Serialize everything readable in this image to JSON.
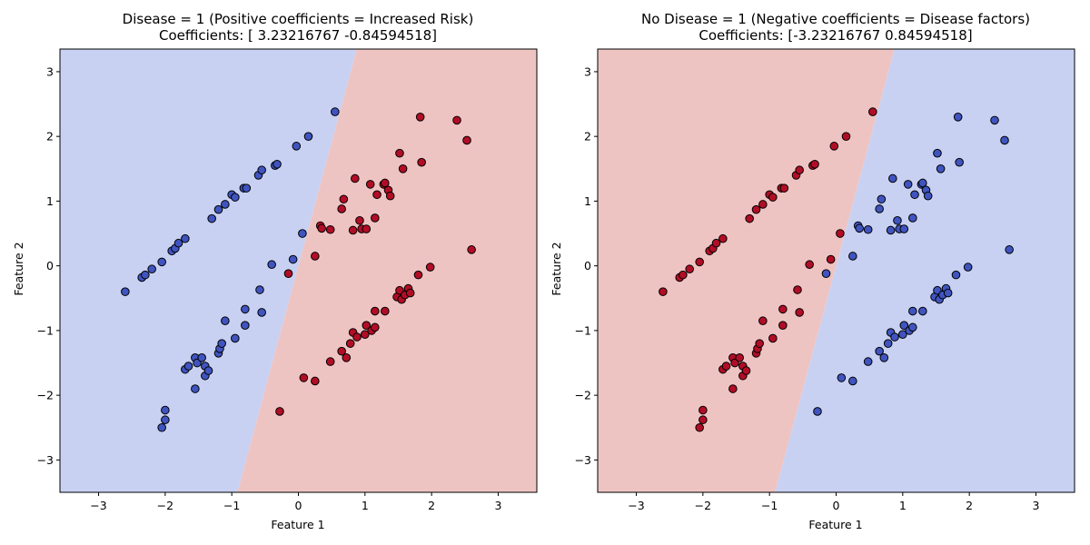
{
  "colors": {
    "region_low": "#c8d1f2",
    "region_high": "#eec4c3",
    "point_blue": "#4054c0",
    "point_red": "#b20d26",
    "point_edge": "#000000"
  },
  "chart_data": [
    {
      "type": "scatter",
      "title": "Disease = 1 (Positive coefficients = Increased Risk)",
      "subtitle": "Coefficients: [ 3.23216767 -0.84594518]",
      "xlabel": "Feature 1",
      "ylabel": "Feature 2",
      "xlim": [
        -3.58,
        3.58
      ],
      "ylim": [
        -3.5,
        3.35
      ],
      "xticks": [
        "−3",
        "−2",
        "−1",
        "0",
        "1",
        "2",
        "3"
      ],
      "yticks": [
        "−3",
        "−2",
        "−1",
        "0",
        "1",
        "2",
        "3"
      ],
      "xtick_values": [
        -3,
        -2,
        -1,
        0,
        1,
        2,
        3
      ],
      "ytick_values": [
        -3,
        -2,
        -1,
        0,
        1,
        2,
        3
      ],
      "decision_boundary": {
        "coef": [
          3.23216767,
          -0.84594518
        ],
        "positive_side_color": "red"
      },
      "grid": false
    },
    {
      "type": "scatter",
      "title": "No Disease = 1 (Negative coefficients = Disease factors)",
      "subtitle": "Coefficients: [-3.23216767  0.84594518]",
      "xlabel": "Feature 1",
      "ylabel": "Feature 2",
      "xlim": [
        -3.58,
        3.58
      ],
      "ylim": [
        -3.5,
        3.35
      ],
      "xticks": [
        "−3",
        "−2",
        "−1",
        "0",
        "1",
        "2",
        "3"
      ],
      "yticks": [
        "−3",
        "−2",
        "−1",
        "0",
        "1",
        "2",
        "3"
      ],
      "xtick_values": [
        -3,
        -2,
        -1,
        0,
        1,
        2,
        3
      ],
      "ytick_values": [
        -3,
        -2,
        -1,
        0,
        1,
        2,
        3
      ],
      "decision_boundary": {
        "coef": [
          -3.23216767,
          0.84594518
        ],
        "positive_side_color": "red"
      },
      "grid": false
    }
  ],
  "points": {
    "class0": [
      [
        -2.6,
        -0.4
      ],
      [
        -2.35,
        -0.18
      ],
      [
        -2.3,
        -0.14
      ],
      [
        -2.2,
        -0.05
      ],
      [
        -2.05,
        0.06
      ],
      [
        -1.9,
        0.23
      ],
      [
        -1.85,
        0.27
      ],
      [
        -1.8,
        0.35
      ],
      [
        -1.7,
        0.42
      ],
      [
        -1.3,
        0.73
      ],
      [
        -1.2,
        0.87
      ],
      [
        -1.1,
        0.95
      ],
      [
        -1.0,
        1.1
      ],
      [
        -0.95,
        1.06
      ],
      [
        -0.82,
        1.2
      ],
      [
        -0.78,
        1.2
      ],
      [
        -0.6,
        1.4
      ],
      [
        -0.55,
        1.48
      ],
      [
        -0.35,
        1.55
      ],
      [
        -0.32,
        1.57
      ],
      [
        -0.03,
        1.85
      ],
      [
        0.15,
        2.0
      ],
      [
        0.55,
        2.38
      ],
      [
        -2.05,
        -2.5
      ],
      [
        -2.0,
        -2.38
      ],
      [
        -2.0,
        -2.23
      ],
      [
        -1.7,
        -1.6
      ],
      [
        -1.65,
        -1.55
      ],
      [
        -1.55,
        -1.42
      ],
      [
        -1.52,
        -1.5
      ],
      [
        -1.45,
        -1.42
      ],
      [
        -1.4,
        -1.55
      ],
      [
        -1.4,
        -1.7
      ],
      [
        -1.35,
        -1.62
      ],
      [
        -1.55,
        -1.9
      ],
      [
        -1.2,
        -1.35
      ],
      [
        -1.18,
        -1.28
      ],
      [
        -1.15,
        -1.2
      ],
      [
        -1.1,
        -0.85
      ],
      [
        -0.95,
        -1.12
      ],
      [
        -0.8,
        -0.92
      ],
      [
        -0.8,
        -0.67
      ],
      [
        -0.58,
        -0.37
      ],
      [
        -0.55,
        -0.72
      ],
      [
        -0.4,
        0.02
      ],
      [
        -0.08,
        0.1
      ],
      [
        0.06,
        0.5
      ]
    ],
    "class1": [
      [
        -0.15,
        -0.12
      ],
      [
        0.25,
        0.15
      ],
      [
        0.33,
        0.62
      ],
      [
        0.35,
        0.58
      ],
      [
        0.48,
        0.56
      ],
      [
        0.65,
        0.88
      ],
      [
        0.68,
        1.03
      ],
      [
        0.82,
        0.55
      ],
      [
        0.85,
        1.35
      ],
      [
        0.92,
        0.7
      ],
      [
        0.95,
        0.57
      ],
      [
        1.02,
        0.57
      ],
      [
        1.08,
        1.26
      ],
      [
        1.15,
        0.74
      ],
      [
        1.18,
        1.1
      ],
      [
        1.28,
        1.26
      ],
      [
        1.3,
        1.28
      ],
      [
        1.35,
        1.17
      ],
      [
        1.38,
        1.08
      ],
      [
        1.52,
        1.74
      ],
      [
        1.57,
        1.5
      ],
      [
        1.83,
        2.3
      ],
      [
        1.85,
        1.6
      ],
      [
        2.38,
        2.25
      ],
      [
        2.53,
        1.94
      ],
      [
        2.6,
        0.25
      ],
      [
        -0.28,
        -2.25
      ],
      [
        0.08,
        -1.73
      ],
      [
        0.25,
        -1.78
      ],
      [
        0.48,
        -1.48
      ],
      [
        0.65,
        -1.32
      ],
      [
        0.72,
        -1.42
      ],
      [
        0.78,
        -1.2
      ],
      [
        0.82,
        -1.03
      ],
      [
        0.88,
        -1.1
      ],
      [
        1.0,
        -1.06
      ],
      [
        1.02,
        -0.92
      ],
      [
        1.1,
        -1.0
      ],
      [
        1.15,
        -0.95
      ],
      [
        1.15,
        -0.7
      ],
      [
        1.3,
        -0.7
      ],
      [
        1.48,
        -0.48
      ],
      [
        1.52,
        -0.38
      ],
      [
        1.55,
        -0.52
      ],
      [
        1.6,
        -0.45
      ],
      [
        1.65,
        -0.35
      ],
      [
        1.68,
        -0.42
      ],
      [
        1.8,
        -0.14
      ],
      [
        1.98,
        -0.02
      ]
    ]
  }
}
